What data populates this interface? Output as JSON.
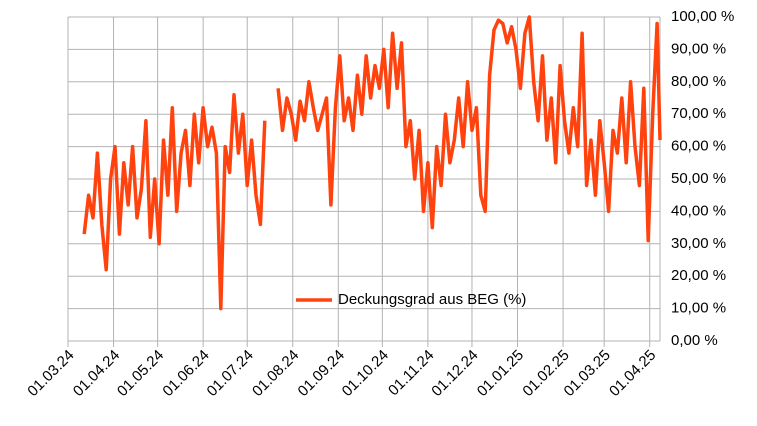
{
  "chart_data": {
    "type": "line",
    "x": [
      "12.03.24",
      "15.03.24",
      "18.03.24",
      "21.03.24",
      "24.03.24",
      "27.03.24",
      "30.03.24",
      "02.04.24",
      "05.04.24",
      "08.04.24",
      "11.04.24",
      "14.04.24",
      "17.04.24",
      "20.04.24",
      "23.04.24",
      "26.04.24",
      "29.04.24",
      "02.05.24",
      "05.05.24",
      "08.05.24",
      "11.05.24",
      "14.05.24",
      "17.05.24",
      "20.05.24",
      "23.05.24",
      "26.05.24",
      "29.05.24",
      "01.06.24",
      "04.06.24",
      "07.06.24",
      "10.06.24",
      "13.06.24",
      "16.06.24",
      "19.06.24",
      "22.06.24",
      "25.06.24",
      "28.06.24",
      "01.07.24",
      "04.07.24",
      "07.07.24",
      "10.07.24",
      "13.07.24",
      "16.07.24",
      "22.07.24",
      "25.07.24",
      "28.07.24",
      "31.07.24",
      "03.08.24",
      "06.08.24",
      "09.08.24",
      "12.08.24",
      "15.08.24",
      "18.08.24",
      "21.08.24",
      "24.08.24",
      "27.08.24",
      "30.08.24",
      "02.09.24",
      "05.09.24",
      "08.09.24",
      "11.09.24",
      "14.09.24",
      "17.09.24",
      "20.09.24",
      "23.09.24",
      "26.09.24",
      "29.09.24",
      "02.10.24",
      "05.10.24",
      "08.10.24",
      "11.10.24",
      "14.10.24",
      "17.10.24",
      "20.10.24",
      "23.10.24",
      "26.10.24",
      "29.10.24",
      "01.11.24",
      "04.11.24",
      "07.11.24",
      "10.11.24",
      "13.11.24",
      "16.11.24",
      "19.11.24",
      "22.11.24",
      "25.11.24",
      "28.11.24",
      "01.12.24",
      "04.12.24",
      "07.12.24",
      "10.12.24",
      "13.12.24",
      "16.12.24",
      "19.12.24",
      "22.12.24",
      "25.12.24",
      "28.12.24",
      "31.12.24",
      "03.01.25",
      "06.01.25",
      "09.01.25",
      "12.01.25",
      "15.01.25",
      "18.01.25",
      "21.01.25",
      "24.01.25",
      "27.01.25",
      "30.01.25",
      "02.02.25",
      "05.02.25",
      "08.02.25",
      "11.02.25",
      "14.02.25",
      "17.02.25",
      "20.02.25",
      "23.02.25",
      "26.02.25",
      "01.03.25",
      "04.03.25",
      "07.03.25",
      "10.03.25",
      "13.03.25",
      "16.03.25",
      "19.03.25",
      "22.03.25",
      "25.03.25",
      "28.03.25",
      "31.03.25",
      "03.04.25",
      "06.04.25",
      "08.04.25"
    ],
    "series": [
      {
        "name": "Deckungsgrad aus BEG (%)",
        "color": "#ff420e",
        "values": [
          33,
          45,
          38,
          58,
          36,
          22,
          50,
          60,
          33,
          55,
          42,
          60,
          38,
          47,
          68,
          32,
          50,
          30,
          62,
          45,
          72,
          40,
          58,
          65,
          48,
          70,
          55,
          72,
          60,
          66,
          58,
          10,
          60,
          52,
          76,
          58,
          70,
          48,
          62,
          45,
          36,
          68,
          null,
          78,
          65,
          75,
          70,
          62,
          74,
          68,
          80,
          72,
          65,
          70,
          75,
          42,
          72,
          88,
          68,
          75,
          65,
          82,
          70,
          88,
          75,
          85,
          78,
          90,
          72,
          95,
          78,
          92,
          60,
          68,
          50,
          65,
          40,
          55,
          35,
          60,
          48,
          70,
          55,
          62,
          75,
          60,
          80,
          65,
          72,
          45,
          40,
          82,
          96,
          99,
          98,
          92,
          97,
          90,
          78,
          95,
          100,
          80,
          68,
          88,
          62,
          75,
          55,
          85,
          68,
          58,
          72,
          60,
          95,
          48,
          62,
          45,
          68,
          55,
          40,
          65,
          58,
          75,
          55,
          80,
          60,
          48,
          78,
          31,
          70,
          98,
          62
        ]
      }
    ],
    "xlim": [
      "01.03.24",
      "08.04.25"
    ],
    "xticks": [
      "01.03.24",
      "01.04.24",
      "01.05.24",
      "01.06.24",
      "01.07.24",
      "01.08.24",
      "01.09.24",
      "01.10.24",
      "01.11.24",
      "01.12.24",
      "01.01.25",
      "01.02.25",
      "01.03.25",
      "01.04.25"
    ],
    "ylim": [
      0,
      100
    ],
    "yticks": [
      {
        "value": 0,
        "label": "0,00 %"
      },
      {
        "value": 10,
        "label": "10,00 %"
      },
      {
        "value": 20,
        "label": "20,00 %"
      },
      {
        "value": 30,
        "label": "30,00 %"
      },
      {
        "value": 40,
        "label": "40,00 %"
      },
      {
        "value": 50,
        "label": "50,00 %"
      },
      {
        "value": 60,
        "label": "60,00 %"
      },
      {
        "value": 70,
        "label": "70,00 %"
      },
      {
        "value": 80,
        "label": "80,00 %"
      },
      {
        "value": 90,
        "label": "90,00 %"
      },
      {
        "value": 100,
        "label": "100,00 %"
      }
    ],
    "grid": true,
    "legend": "center"
  }
}
